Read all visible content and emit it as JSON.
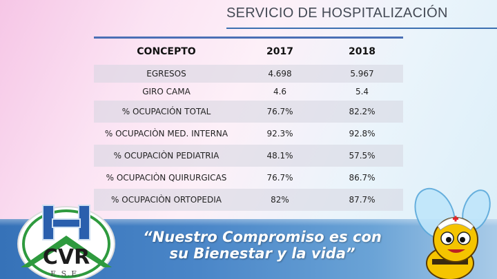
{
  "title": "SERVICIO DE HOSPITALIZACIÓN",
  "table": {
    "headers": [
      "CONCEPTO",
      "2017",
      "2018"
    ],
    "rows": [
      [
        "EGRESOS",
        "4.698",
        "5.967"
      ],
      [
        "GIRO CAMA",
        "4.6",
        "5.4"
      ],
      [
        "% OCUPACIÓN TOTAL",
        "76.7%",
        "82.2%"
      ],
      [
        "% OCUPACIÒN MED. INTERNA",
        "92.3%",
        "92.8%"
      ],
      [
        "% OCUPACIÒN PEDIATRIA",
        "48.1%",
        "57.5%"
      ],
      [
        "% OCUPACIÒN QUIRURGICAS",
        "76.7%",
        "86.7%"
      ],
      [
        "% OCUPACIÒN ORTOPEDIA",
        "82%",
        "87.7%"
      ]
    ]
  },
  "slogan": {
    "line1": "“Nuestro Compromiso es con",
    "line2": "su Bienestar y la vida”"
  },
  "logo": {
    "letter": "H",
    "text": "CVR",
    "subtext": "E.S.E."
  },
  "colors": {
    "accent": "#3b6fb0",
    "band": "#4a86c8",
    "logo_green": "#2e9a3e",
    "logo_blue": "#2a5fad",
    "bee_yellow": "#f5c400"
  }
}
